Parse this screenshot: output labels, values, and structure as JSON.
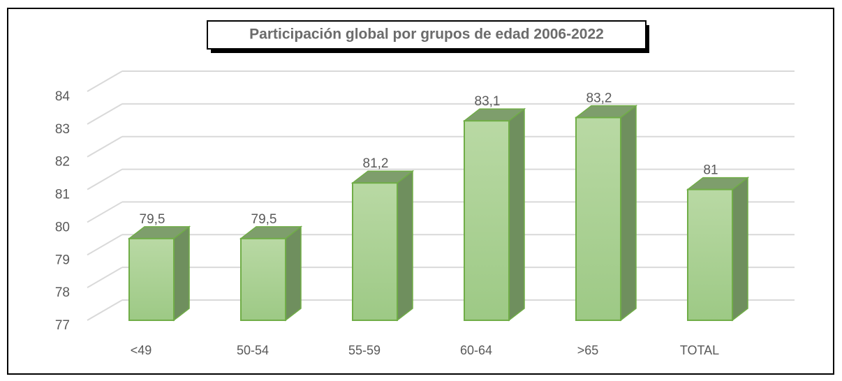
{
  "chart_data": {
    "type": "bar3d",
    "title": "Participación global  por grupos de edad 2006-2022",
    "categories": [
      "<49",
      "50-54",
      "55-59",
      "60-64",
      ">65",
      "TOTAL"
    ],
    "values": [
      79.5,
      79.5,
      81.2,
      83.1,
      83.2,
      81
    ],
    "value_labels": [
      "79,5",
      "79,5",
      "81,2",
      "83,1",
      "83,2",
      "81"
    ],
    "color": "#a9d18e",
    "ylim": [
      77,
      84
    ],
    "yticks": [
      77,
      78,
      79,
      80,
      81,
      82,
      83,
      84
    ],
    "grid": true
  }
}
